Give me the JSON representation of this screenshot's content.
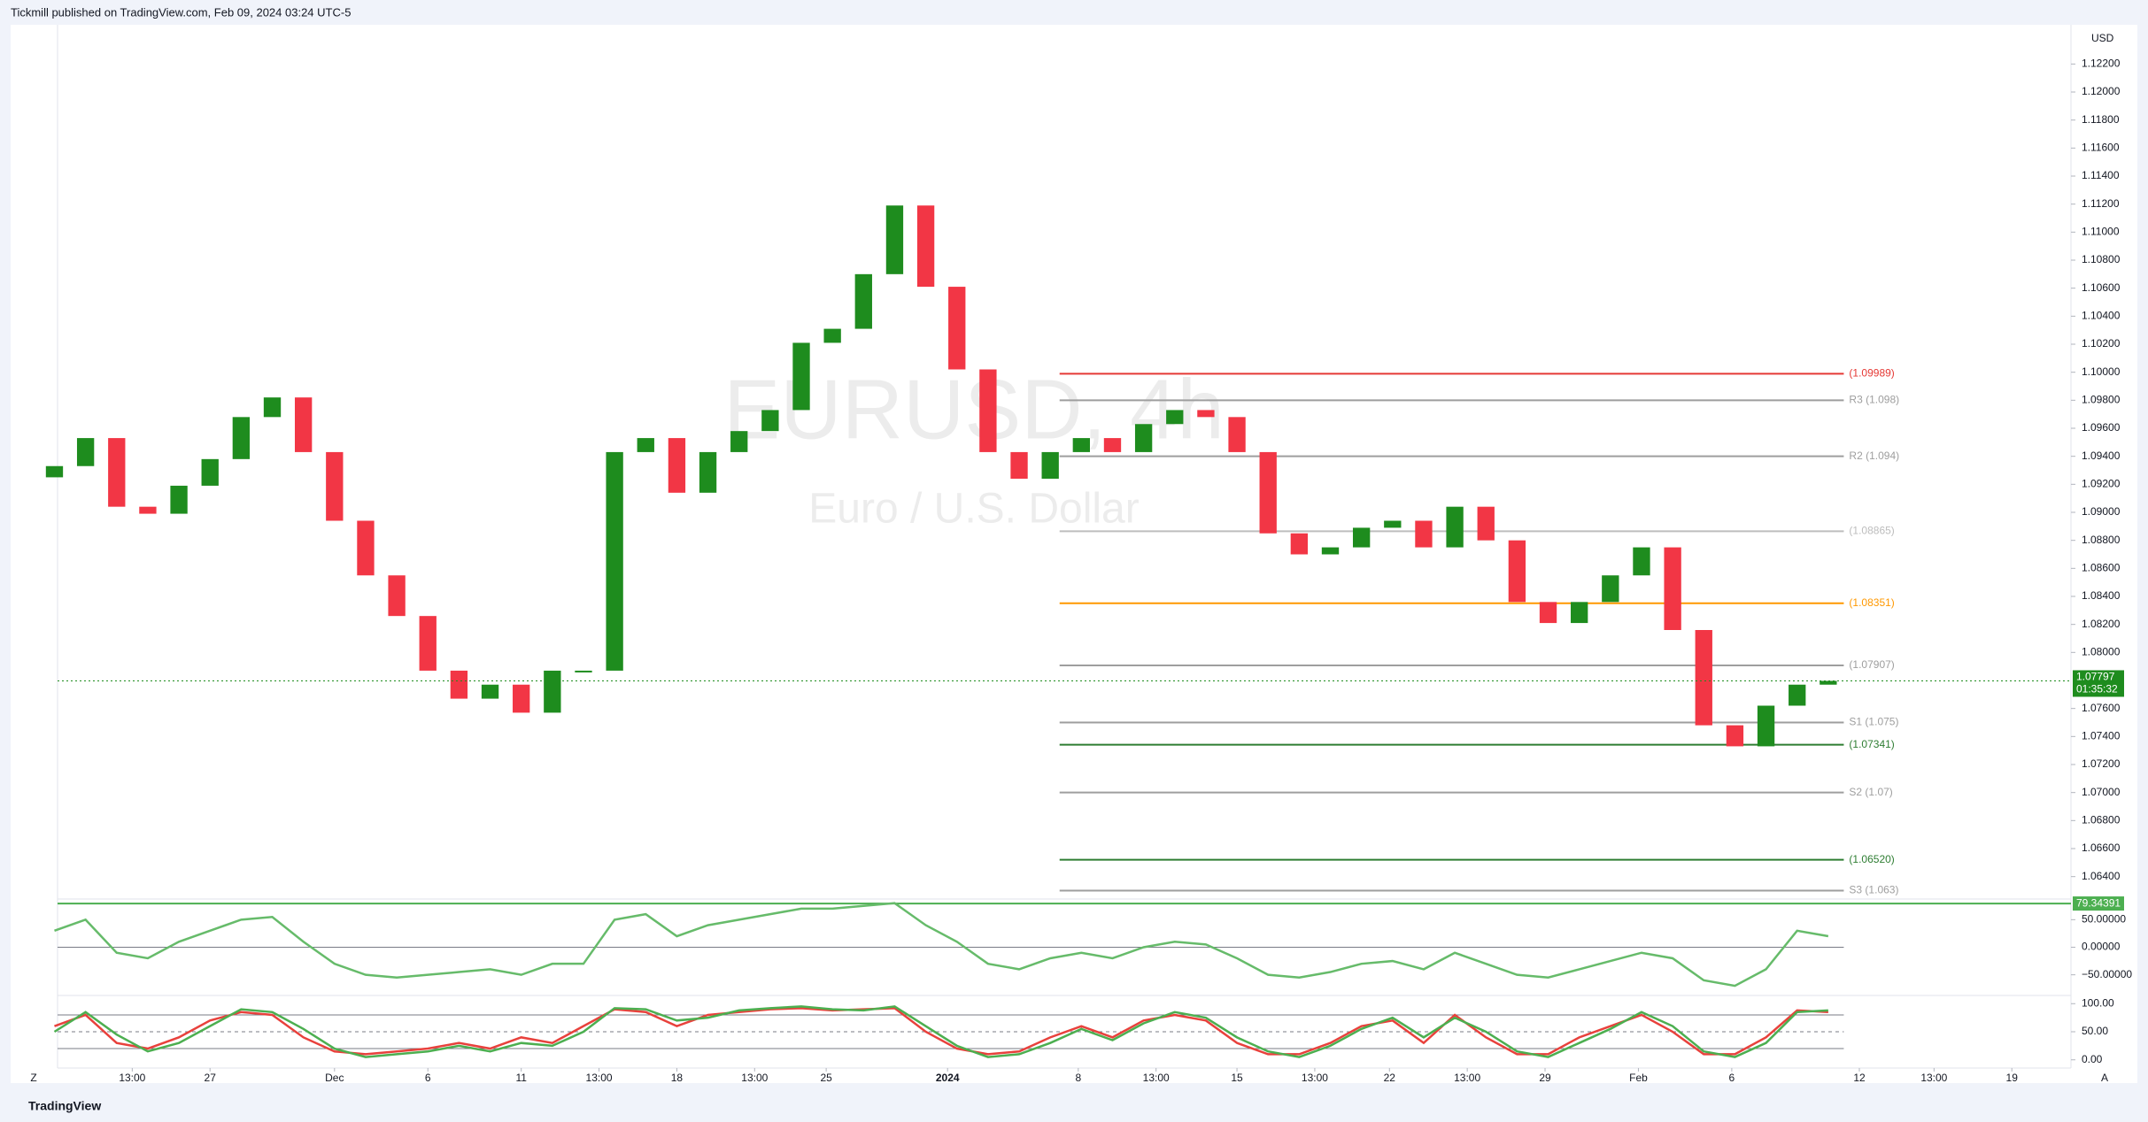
{
  "header": {
    "publisher": "Tickmill published on TradingView.com, Feb 09, 2024 03:24 UTC-5"
  },
  "footer": {
    "brand": "TradingView",
    "left_button": "Z",
    "right_button": "A"
  },
  "chart_data": [
    {
      "type": "candlestick",
      "title": "EURUSD, 4h",
      "subtitle": "Euro / U.S. Dollar",
      "currency": "USD",
      "up_color": "#1e8c1e",
      "down_color": "#f23645",
      "x": [
        -5,
        -4,
        -3,
        -2,
        -1,
        0,
        1,
        2,
        3,
        4,
        5,
        6,
        7,
        8,
        9,
        10,
        11,
        12,
        13,
        14,
        15,
        16,
        17,
        18,
        19,
        20,
        21,
        22,
        23,
        24,
        25,
        26,
        27,
        28,
        29,
        30,
        31,
        32,
        33,
        34,
        35,
        36,
        37,
        38,
        39,
        40,
        41,
        42,
        43,
        44,
        45,
        46,
        47,
        48,
        49,
        50,
        51,
        52
      ],
      "opens": [
        1.0925,
        1.0933,
        1.0953,
        1.0904,
        1.0899,
        1.0919,
        1.0938,
        1.0968,
        1.0982,
        1.0943,
        1.0894,
        1.0855,
        1.0826,
        1.0787,
        1.0767,
        1.0777,
        1.0757,
        1.0787,
        1.0787,
        1.0943,
        1.0953,
        1.0914,
        1.0943,
        1.0958,
        1.0973,
        1.1021,
        1.1031,
        1.107,
        1.1119,
        1.1061,
        1.1002,
        1.0943,
        1.0924,
        1.0943,
        1.0953,
        1.0943,
        1.0963,
        1.0973,
        1.0968,
        1.0943,
        1.0885,
        1.087,
        1.0875,
        1.0889,
        1.0894,
        1.0875,
        1.0904,
        1.088,
        1.0836,
        1.0821,
        1.0836,
        1.0855,
        1.0875,
        1.0816,
        1.0748,
        1.0733,
        1.0762,
        1.0777
      ],
      "closes": [
        1.0933,
        1.0953,
        1.0904,
        1.0899,
        1.0919,
        1.0938,
        1.0968,
        1.0982,
        1.0943,
        1.0894,
        1.0855,
        1.0826,
        1.0787,
        1.0767,
        1.0777,
        1.0757,
        1.0787,
        1.0787,
        1.0943,
        1.0953,
        1.0914,
        1.0943,
        1.0958,
        1.0973,
        1.1021,
        1.1031,
        1.107,
        1.1119,
        1.1061,
        1.1002,
        1.0943,
        1.0924,
        1.0943,
        1.0953,
        1.0943,
        1.0963,
        1.0973,
        1.0968,
        1.0943,
        1.0885,
        1.087,
        1.0875,
        1.0889,
        1.0894,
        1.0875,
        1.0904,
        1.088,
        1.0836,
        1.0821,
        1.0836,
        1.0855,
        1.0875,
        1.0816,
        1.0748,
        1.0733,
        1.0762,
        1.0777,
        1.07797
      ],
      "xlim": [
        -4.9,
        59.8
      ],
      "ylim": [
        1.0624,
        1.1248
      ],
      "xticks": [
        {
          "value": -2.5,
          "label": "13:00"
        },
        {
          "value": 0,
          "label": "27"
        },
        {
          "value": 4,
          "label": "Dec"
        },
        {
          "value": 7,
          "label": "6"
        },
        {
          "value": 10,
          "label": "11"
        },
        {
          "value": 12.5,
          "label": "13:00"
        },
        {
          "value": 15,
          "label": "18"
        },
        {
          "value": 17.5,
          "label": "13:00"
        },
        {
          "value": 19.8,
          "label": "25"
        },
        {
          "value": 23.7,
          "label": "2024"
        },
        {
          "value": 27.9,
          "label": "8"
        },
        {
          "value": 30.4,
          "label": "13:00"
        },
        {
          "value": 33,
          "label": "15"
        },
        {
          "value": 35.5,
          "label": "13:00"
        },
        {
          "value": 37.9,
          "label": "22"
        },
        {
          "value": 40.4,
          "label": "13:00"
        },
        {
          "value": 42.9,
          "label": "29"
        },
        {
          "value": 45.9,
          "label": "Feb"
        },
        {
          "value": 48.9,
          "label": "6"
        },
        {
          "value": 53,
          "label": "12"
        },
        {
          "value": 55.4,
          "label": "13:00"
        },
        {
          "value": 57.9,
          "label": "19"
        }
      ],
      "yticks": [
        {
          "value": 1.064,
          "label": "1.06400"
        },
        {
          "value": 1.066,
          "label": "1.06600"
        },
        {
          "value": 1.068,
          "label": "1.06800"
        },
        {
          "value": 1.07,
          "label": "1.07000"
        },
        {
          "value": 1.072,
          "label": "1.07200"
        },
        {
          "value": 1.074,
          "label": "1.07400"
        },
        {
          "value": 1.076,
          "label": "1.07600"
        },
        {
          "value": 1.08,
          "label": "1.08000"
        },
        {
          "value": 1.082,
          "label": "1.08200"
        },
        {
          "value": 1.084,
          "label": "1.08400"
        },
        {
          "value": 1.086,
          "label": "1.08600"
        },
        {
          "value": 1.088,
          "label": "1.08800"
        },
        {
          "value": 1.09,
          "label": "1.09000"
        },
        {
          "value": 1.092,
          "label": "1.09200"
        },
        {
          "value": 1.094,
          "label": "1.09400"
        },
        {
          "value": 1.096,
          "label": "1.09600"
        },
        {
          "value": 1.098,
          "label": "1.09800"
        },
        {
          "value": 1.1,
          "label": "1.10000"
        },
        {
          "value": 1.102,
          "label": "1.10200"
        },
        {
          "value": 1.104,
          "label": "1.10400"
        },
        {
          "value": 1.106,
          "label": "1.10600"
        },
        {
          "value": 1.108,
          "label": "1.10800"
        },
        {
          "value": 1.11,
          "label": "1.11000"
        },
        {
          "value": 1.112,
          "label": "1.11200"
        },
        {
          "value": 1.114,
          "label": "1.11400"
        },
        {
          "value": 1.116,
          "label": "1.11600"
        },
        {
          "value": 1.118,
          "label": "1.11800"
        },
        {
          "value": 1.12,
          "label": "1.12000"
        },
        {
          "value": 1.122,
          "label": "1.12200"
        }
      ],
      "levels": [
        {
          "value": 1.09989,
          "label": "(1.09989)",
          "color": "#e53935"
        },
        {
          "value": 1.098,
          "label": "R3 (1.098)",
          "color": "#9e9e9e"
        },
        {
          "value": 1.094,
          "label": "R2 (1.094)",
          "color": "#9e9e9e"
        },
        {
          "value": 1.08865,
          "label": "(1.08865)",
          "color": "#bdbdbd"
        },
        {
          "value": 1.08351,
          "label": "(1.08351)",
          "color": "#ff9800"
        },
        {
          "value": 1.07907,
          "label": "(1.07907)",
          "color": "#9e9e9e"
        },
        {
          "value": 1.075,
          "label": "S1 (1.075)",
          "color": "#9e9e9e"
        },
        {
          "value": 1.07341,
          "label": "(1.07341)",
          "color": "#2e7d32"
        },
        {
          "value": 1.07,
          "label": "S2 (1.07)",
          "color": "#9e9e9e"
        },
        {
          "value": 1.0652,
          "label": "(1.06520)",
          "color": "#2e7d32"
        },
        {
          "value": 1.063,
          "label": "S3 (1.063)",
          "color": "#9e9e9e"
        }
      ],
      "last_price": {
        "value": 1.07797,
        "label": "1.07797",
        "countdown": "01:35:32",
        "color": "#1e8c1e"
      }
    },
    {
      "type": "line",
      "color": "#66bb6a",
      "down_color": "#ef5350",
      "ylim": [
        -87.5,
        87.5
      ],
      "yticks": [
        {
          "value": 50,
          "label": "50.00000"
        },
        {
          "value": 0,
          "label": "0.00000"
        },
        {
          "value": -50,
          "label": "−50.00000"
        }
      ],
      "levels": [
        0
      ],
      "marker": {
        "value": 79.34391,
        "color": "#4caf50"
      },
      "values": [
        30,
        50,
        -10,
        -20,
        10,
        30,
        50,
        55,
        10,
        -30,
        -50,
        -55,
        -50,
        -45,
        -40,
        -50,
        -30,
        -30,
        50,
        60,
        20,
        40,
        50,
        60,
        70,
        70,
        75,
        80,
        40,
        10,
        -30,
        -40,
        -20,
        -10,
        -20,
        0,
        10,
        5,
        -20,
        -50,
        -55,
        -45,
        -30,
        -25,
        -40,
        -10,
        -30,
        -50,
        -55,
        -40,
        -25,
        -10,
        -20,
        -60,
        -70,
        -40,
        30,
        20
      ]
    },
    {
      "type": "line",
      "ylim": [
        -14.6,
        114.6
      ],
      "yticks": [
        {
          "value": 100,
          "label": "100.00"
        },
        {
          "value": 50,
          "label": "50.00"
        },
        {
          "value": 0,
          "label": "0.00"
        }
      ],
      "levels": [
        80,
        50,
        20
      ],
      "series": [
        {
          "color": "#e8413c",
          "values": [
            60,
            80,
            30,
            20,
            40,
            70,
            85,
            80,
            40,
            15,
            10,
            15,
            20,
            30,
            20,
            40,
            30,
            60,
            90,
            85,
            60,
            80,
            85,
            90,
            92,
            88,
            90,
            92,
            50,
            20,
            10,
            15,
            40,
            60,
            40,
            70,
            80,
            70,
            30,
            10,
            10,
            30,
            60,
            70,
            30,
            80,
            40,
            10,
            10,
            40,
            60,
            80,
            50,
            10,
            10,
            40,
            88,
            85
          ]
        },
        {
          "color": "#4caf50",
          "values": [
            50,
            85,
            45,
            15,
            30,
            60,
            90,
            85,
            55,
            20,
            5,
            10,
            15,
            25,
            15,
            30,
            25,
            50,
            92,
            90,
            70,
            75,
            88,
            92,
            95,
            90,
            88,
            95,
            60,
            25,
            5,
            10,
            30,
            55,
            35,
            65,
            85,
            75,
            40,
            15,
            5,
            25,
            55,
            75,
            40,
            75,
            50,
            15,
            5,
            30,
            55,
            85,
            60,
            15,
            5,
            30,
            85,
            88
          ]
        }
      ]
    }
  ]
}
